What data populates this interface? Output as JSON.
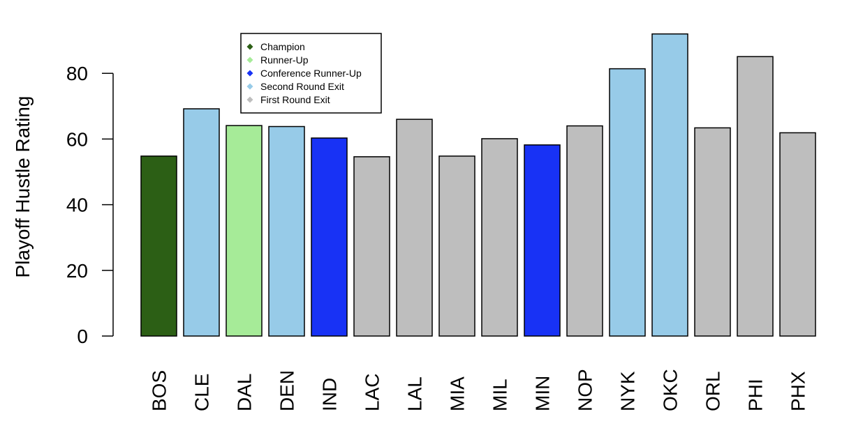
{
  "chart_data": {
    "type": "bar",
    "title": "",
    "xlabel": "",
    "ylabel": "Playoff Hustle Rating",
    "ylim": [
      0,
      92
    ],
    "yticks": [
      0,
      20,
      40,
      60,
      80
    ],
    "grid": false,
    "legend_position": "top-left",
    "categories": [
      "BOS",
      "CLE",
      "DAL",
      "DEN",
      "IND",
      "LAC",
      "LAL",
      "MIA",
      "MIL",
      "MIN",
      "NOP",
      "NYK",
      "OKC",
      "ORL",
      "PHI",
      "PHX"
    ],
    "values": [
      54.8,
      69.2,
      64.1,
      63.8,
      60.3,
      54.6,
      66.0,
      54.8,
      60.1,
      58.2,
      64.0,
      81.4,
      92.0,
      63.4,
      85.1,
      61.9
    ],
    "outcomes": [
      "Champion",
      "Second Round Exit",
      "Runner-Up",
      "Second Round Exit",
      "Conference Runner-Up",
      "First Round Exit",
      "First Round Exit",
      "First Round Exit",
      "First Round Exit",
      "Conference Runner-Up",
      "First Round Exit",
      "Second Round Exit",
      "Second Round Exit",
      "First Round Exit",
      "First Round Exit",
      "First Round Exit"
    ],
    "legend": [
      {
        "label": "Champion",
        "color": "#2c5f15"
      },
      {
        "label": "Runner-Up",
        "color": "#a6eb98"
      },
      {
        "label": "Conference Runner-Up",
        "color": "#1832f5"
      },
      {
        "label": "Second Round Exit",
        "color": "#97cbe8"
      },
      {
        "label": "First Round Exit",
        "color": "#bebebe"
      }
    ]
  }
}
